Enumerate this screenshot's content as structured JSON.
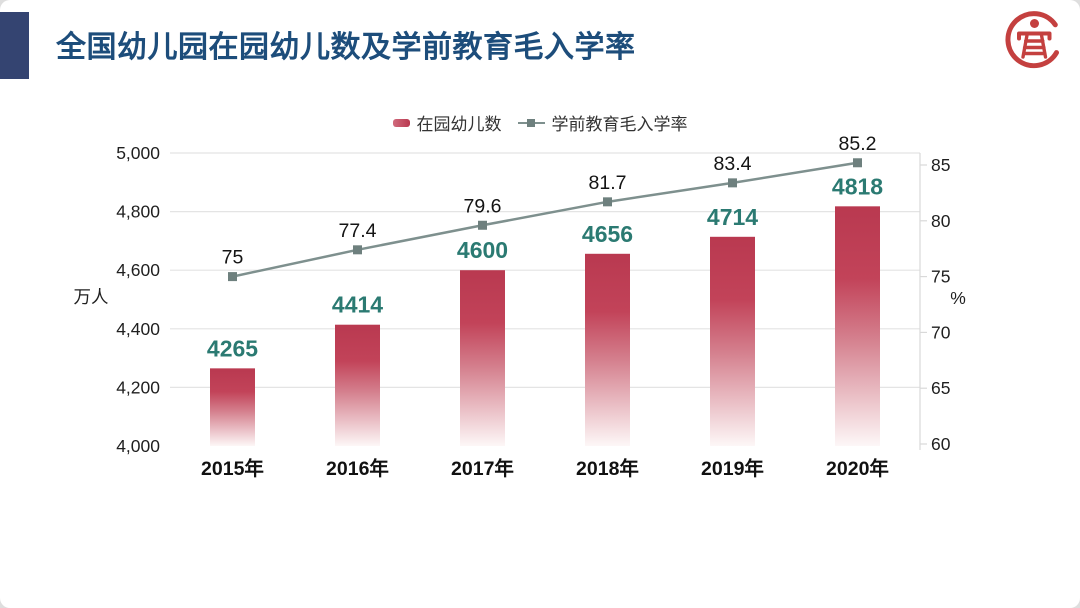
{
  "header": {
    "title": "全国幼儿园在园幼儿数及学前教育毛入学率",
    "logo": "education-seal-icon"
  },
  "legend": {
    "bar_label": "在园幼儿数",
    "line_label": "学前教育毛入学率"
  },
  "theme": {
    "accent_navy": "#344471",
    "title_blue": "#1d4d7b",
    "logo_red": "#c4403f",
    "bar_top": "#b93950",
    "bar_gradient": [
      [
        "0%",
        "#b93950"
      ],
      [
        "30%",
        "#c24359"
      ],
      [
        "55%",
        "#d47f8d"
      ],
      [
        "78%",
        "#e9bcc3"
      ],
      [
        "100%",
        "#fdf7f7"
      ]
    ],
    "bar_label_teal": "#2b7a72",
    "line_grey": "#7e908e",
    "marker_grey": "#6e807e",
    "grid_grey": "#e4e4e4",
    "axis_line_grey": "#d9d9d9",
    "axis_text": "#1f1f1f",
    "line_label_text": "#141414"
  },
  "chart_data": {
    "type": "bar",
    "subtype": "bar-line-combo",
    "title": "全国幼儿园在园幼儿数及学前教育毛入学率",
    "categories": [
      "2015年",
      "2016年",
      "2017年",
      "2018年",
      "2019年",
      "2020年"
    ],
    "series": [
      {
        "name": "在园幼儿数",
        "type": "bar",
        "axis": "left",
        "values": [
          4265,
          4414,
          4600,
          4656,
          4714,
          4818
        ],
        "labels": [
          "4265",
          "4414",
          "4600",
          "4656",
          "4714",
          "4818"
        ]
      },
      {
        "name": "学前教育毛入学率",
        "type": "line",
        "axis": "right",
        "values": [
          75,
          77.4,
          79.6,
          81.7,
          83.4,
          85.2
        ],
        "labels": [
          "75",
          "77.4",
          "79.6",
          "81.7",
          "83.4",
          "85.2"
        ]
      }
    ],
    "left_axis": {
      "unit": "万人",
      "min": 4000,
      "max": 5000,
      "ticks": [
        {
          "v": 5000,
          "label": "5,000"
        },
        {
          "v": 4800,
          "label": "4,800"
        },
        {
          "v": 4600,
          "label": "4,600"
        },
        {
          "v": 4400,
          "label": "4,400"
        },
        {
          "v": 4200,
          "label": "4,200"
        },
        {
          "v": 4000,
          "label": "4,000"
        }
      ]
    },
    "right_axis": {
      "unit": "%",
      "min": 60,
      "max": 85,
      "ticks": [
        {
          "v": 85,
          "label": "85"
        },
        {
          "v": 80,
          "label": "80"
        },
        {
          "v": 75,
          "label": "75"
        },
        {
          "v": 70,
          "label": "70"
        },
        {
          "v": 65,
          "label": "65"
        },
        {
          "v": 60,
          "label": "60"
        }
      ]
    },
    "legend_position": "top-center",
    "grid": "horizontal"
  }
}
